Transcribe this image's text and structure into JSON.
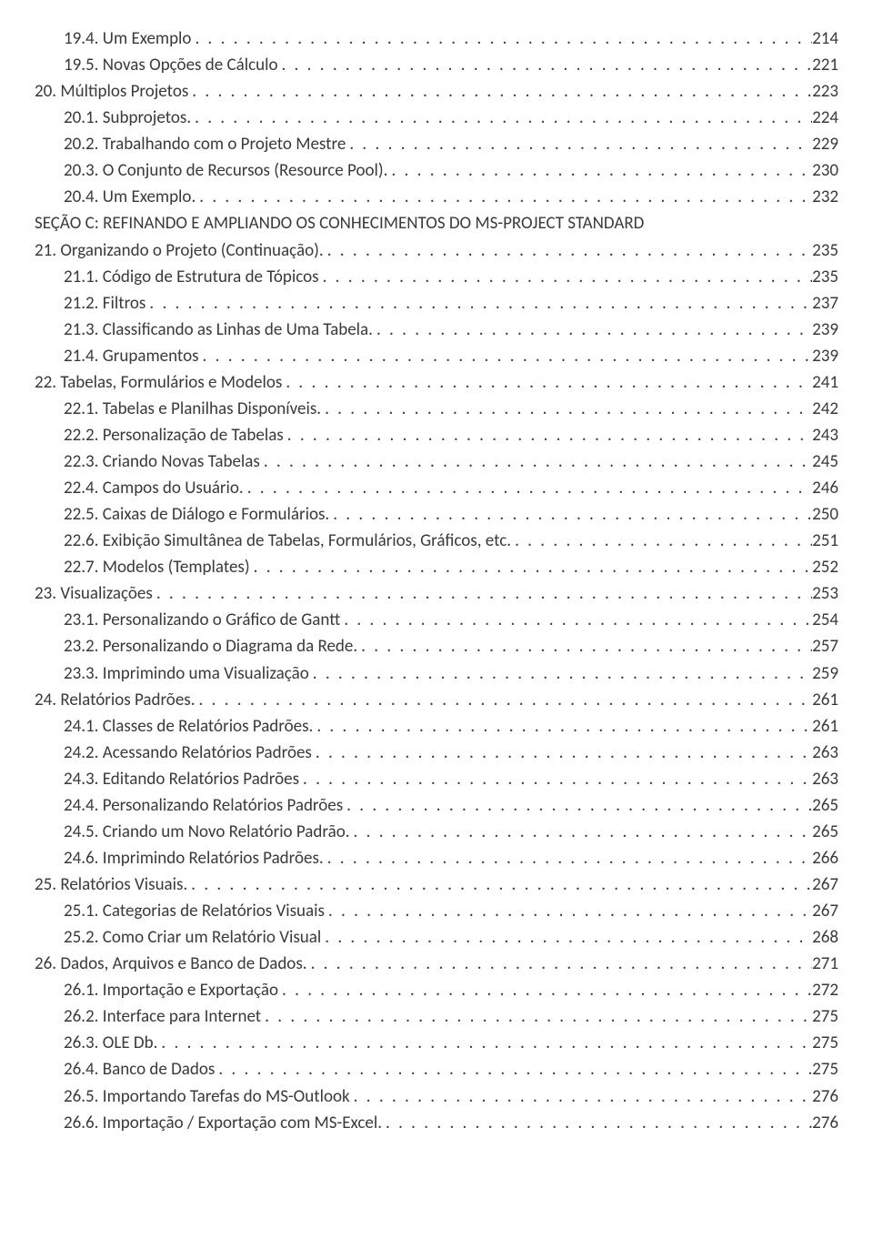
{
  "entries": [
    {
      "indent": 2,
      "label": "19.4. Um Exemplo",
      "page": "214"
    },
    {
      "indent": 2,
      "label": "19.5. Novas Opções de Cálculo",
      "page": "221"
    },
    {
      "indent": 1,
      "label": "20. Múltiplos Projetos",
      "page": "223"
    },
    {
      "indent": 2,
      "label": "20.1. Subprojetos.",
      "page": "224"
    },
    {
      "indent": 2,
      "label": "20.2. Trabalhando com o Projeto Mestre",
      "page": "229"
    },
    {
      "indent": 2,
      "label": "20.3. O Conjunto de Recursos (Resource Pool).",
      "page": "230"
    },
    {
      "indent": 2,
      "label": "20.4. Um Exemplo.",
      "page": "232"
    },
    {
      "indent": 0,
      "label": "SEÇÃO C: REFINANDO E AMPLIANDO OS CONHECIMENTOS DO MS-PROJECT STANDARD",
      "page": null
    },
    {
      "indent": 1,
      "label": "21. Organizando o Projeto (Continuação).",
      "page": "235"
    },
    {
      "indent": 2,
      "label": "21.1. Código de Estrutura de Tópicos",
      "page": "235"
    },
    {
      "indent": 2,
      "label": "21.2. Filtros",
      "page": "237"
    },
    {
      "indent": 2,
      "label": "21.3. Classificando as Linhas de Uma Tabela.",
      "page": "239"
    },
    {
      "indent": 2,
      "label": "21.4. Grupamentos",
      "page": "239"
    },
    {
      "indent": 1,
      "label": "22. Tabelas, Formulários e Modelos",
      "page": "241"
    },
    {
      "indent": 2,
      "label": "22.1. Tabelas e Planilhas Disponíveis.",
      "page": "242"
    },
    {
      "indent": 2,
      "label": "22.2. Personalização de Tabelas",
      "page": "243"
    },
    {
      "indent": 2,
      "label": "22.3. Criando Novas Tabelas",
      "page": "245"
    },
    {
      "indent": 2,
      "label": "22.4. Campos do Usuário.",
      "page": "246"
    },
    {
      "indent": 2,
      "label": "22.5. Caixas de Diálogo e Formulários.",
      "page": "250"
    },
    {
      "indent": 2,
      "label": "22.6. Exibição Simultânea de Tabelas, Formulários, Gráficos, etc.",
      "page": "251"
    },
    {
      "indent": 2,
      "label": "22.7. Modelos (Templates)",
      "page": "252"
    },
    {
      "indent": 1,
      "label": "23. Visualizações",
      "page": "253"
    },
    {
      "indent": 2,
      "label": "23.1. Personalizando o Gráfico de Gantt",
      "page": "254"
    },
    {
      "indent": 2,
      "label": "23.2. Personalizando o Diagrama da Rede.",
      "page": "257"
    },
    {
      "indent": 2,
      "label": "23.3. Imprimindo uma Visualização",
      "page": "259"
    },
    {
      "indent": 1,
      "label": "24. Relatórios Padrões.",
      "page": "261"
    },
    {
      "indent": 2,
      "label": "24.1. Classes de Relatórios Padrões.",
      "page": "261"
    },
    {
      "indent": 2,
      "label": "24.2. Acessando Relatórios Padrões",
      "page": "263"
    },
    {
      "indent": 2,
      "label": "24.3. Editando Relatórios Padrões",
      "page": "263"
    },
    {
      "indent": 2,
      "label": "24.4. Personalizando Relatórios Padrões",
      "page": "265"
    },
    {
      "indent": 2,
      "label": "24.5. Criando um Novo Relatório Padrão.",
      "page": "265"
    },
    {
      "indent": 2,
      "label": "24.6. Imprimindo Relatórios Padrões.",
      "page": "266"
    },
    {
      "indent": 1,
      "label": "25. Relatórios Visuais.",
      "page": "267"
    },
    {
      "indent": 2,
      "label": "25.1. Categorias de Relatórios Visuais",
      "page": "267"
    },
    {
      "indent": 2,
      "label": "25.2. Como Criar um Relatório Visual",
      "page": "268"
    },
    {
      "indent": 1,
      "label": "26. Dados, Arquivos e Banco de Dados.",
      "page": "271"
    },
    {
      "indent": 2,
      "label": "26.1. Importação e Exportação",
      "page": "272"
    },
    {
      "indent": 2,
      "label": "26.2. Interface para Internet",
      "page": "275"
    },
    {
      "indent": 2,
      "label": "26.3. OLE Db.",
      "page": "275"
    },
    {
      "indent": 2,
      "label": "26.4. Banco de Dados",
      "page": "275"
    },
    {
      "indent": 2,
      "label": "26.5. Importando Tarefas do MS-Outlook",
      "page": "276"
    },
    {
      "indent": 2,
      "label": "26.6. Importação / Exportação com MS-Excel.",
      "page": "276"
    }
  ]
}
